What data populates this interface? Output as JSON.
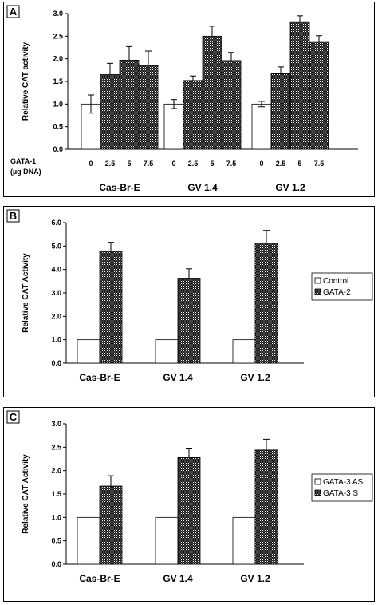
{
  "colors": {
    "open_bar": "#ffffff",
    "stipple_bar": "#1a1a1a",
    "axis": "#000000"
  },
  "chart_data": [
    {
      "panel": "A",
      "type": "bar",
      "ylabel": "Relative CAT activity",
      "ylim": [
        0,
        3.0
      ],
      "yticks": [
        "0.0",
        "0.5",
        "1.0",
        "1.5",
        "2.0",
        "2.5",
        "3.0"
      ],
      "xaxis_caption": [
        "GATA-1",
        "(µg DNA)"
      ],
      "dose_labels": [
        "0",
        "2.5",
        "5",
        "7.5"
      ],
      "groups": [
        {
          "name": "Cas-Br-E",
          "values": [
            1.0,
            1.65,
            1.97,
            1.85
          ],
          "errors": [
            0.2,
            0.25,
            0.3,
            0.32
          ]
        },
        {
          "name": "GV 1.4",
          "values": [
            1.0,
            1.52,
            2.5,
            1.96
          ],
          "errors": [
            0.1,
            0.1,
            0.22,
            0.18
          ]
        },
        {
          "name": "GV 1.2",
          "values": [
            1.0,
            1.67,
            2.82,
            2.38
          ],
          "errors": [
            0.06,
            0.15,
            0.13,
            0.13
          ]
        }
      ],
      "legend": null
    },
    {
      "panel": "B",
      "type": "bar",
      "ylabel": "Relative CAT Activity",
      "ylim": [
        0,
        6.0
      ],
      "yticks": [
        "0.0",
        "1.0",
        "2.0",
        "3.0",
        "4.0",
        "5.0",
        "6.0"
      ],
      "categories": [
        "Cas-Br-E",
        "GV 1.4",
        "GV 1.2"
      ],
      "series": [
        {
          "name": "Control",
          "values": [
            1.0,
            1.0,
            1.0
          ],
          "errors": [
            0,
            0,
            0
          ]
        },
        {
          "name": "GATA-2",
          "values": [
            4.78,
            3.63,
            5.12
          ],
          "errors": [
            0.38,
            0.4,
            0.55
          ]
        }
      ],
      "legend": "right"
    },
    {
      "panel": "C",
      "type": "bar",
      "ylabel": "Relative CAT Activity",
      "ylim": [
        0,
        3.0
      ],
      "yticks": [
        "0.0",
        "0.5",
        "1.0",
        "1.5",
        "2.0",
        "2.5",
        "3.0"
      ],
      "categories": [
        "Cas-Br-E",
        "GV 1.4",
        "GV 1.2"
      ],
      "series": [
        {
          "name": "GATA-3 AS",
          "values": [
            1.0,
            1.0,
            1.0
          ],
          "errors": [
            0,
            0,
            0
          ]
        },
        {
          "name": "GATA-3 S",
          "values": [
            1.67,
            2.28,
            2.44
          ],
          "errors": [
            0.22,
            0.2,
            0.23
          ]
        }
      ],
      "legend": "right"
    }
  ]
}
